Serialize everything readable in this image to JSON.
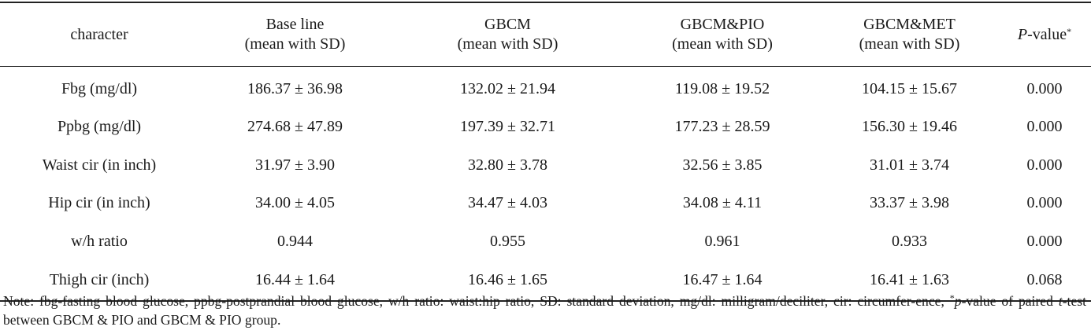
{
  "table": {
    "headers": [
      {
        "line1": "character",
        "line2": ""
      },
      {
        "line1": "Base line",
        "line2": "(mean with SD)"
      },
      {
        "line1": "GBCM",
        "line2": "(mean with SD)"
      },
      {
        "line1": "GBCM&PIO",
        "line2": "(mean with SD)"
      },
      {
        "line1": "GBCM&MET",
        "line2": "(mean with SD)"
      }
    ],
    "pvalue_header": {
      "italic": "P",
      "rest": "-value",
      "sup": "*"
    },
    "rows": [
      {
        "cells": [
          "Fbg (mg/dl)",
          "186.37 ± 36.98",
          "132.02 ± 21.94",
          "119.08 ± 19.52",
          "104.15 ± 15.67",
          "0.000"
        ]
      },
      {
        "cells": [
          "Ppbg (mg/dl)",
          "274.68 ± 47.89",
          "197.39 ± 32.71",
          "177.23 ± 28.59",
          "156.30 ± 19.46",
          "0.000"
        ]
      },
      {
        "cells": [
          "Waist cir (in inch)",
          "31.97 ± 3.90",
          "32.80 ± 3.78",
          "32.56 ± 3.85",
          "31.01 ± 3.74",
          "0.000"
        ]
      },
      {
        "cells": [
          "Hip cir (in inch)",
          "34.00 ± 4.05",
          "34.47 ± 4.03",
          "34.08 ± 4.11",
          "33.37 ± 3.98",
          "0.000"
        ]
      },
      {
        "cells": [
          "w/h ratio",
          "0.944",
          "0.955",
          "0.961",
          "0.933",
          "0.000"
        ]
      },
      {
        "cells": [
          "Thigh cir (inch)",
          "16.44 ± 1.64",
          "16.46 ± 1.65",
          "16.47 ± 1.64",
          "16.41 ± 1.63",
          "0.068"
        ]
      }
    ]
  },
  "note": {
    "part1": "Note: fbg-fasting blood glucose, ppbg-postprandial blood glucose, w/h ratio: waist:hip ratio, SD: standard deviation, mg/dl: milligram/deciliter, cir: circumfer-ence, ",
    "sup": "*",
    "p_italic": "p",
    "part2": "-value of paired ",
    "t_italic": "t",
    "part3": "-test between GBCM & PIO and GBCM & PIO group."
  }
}
